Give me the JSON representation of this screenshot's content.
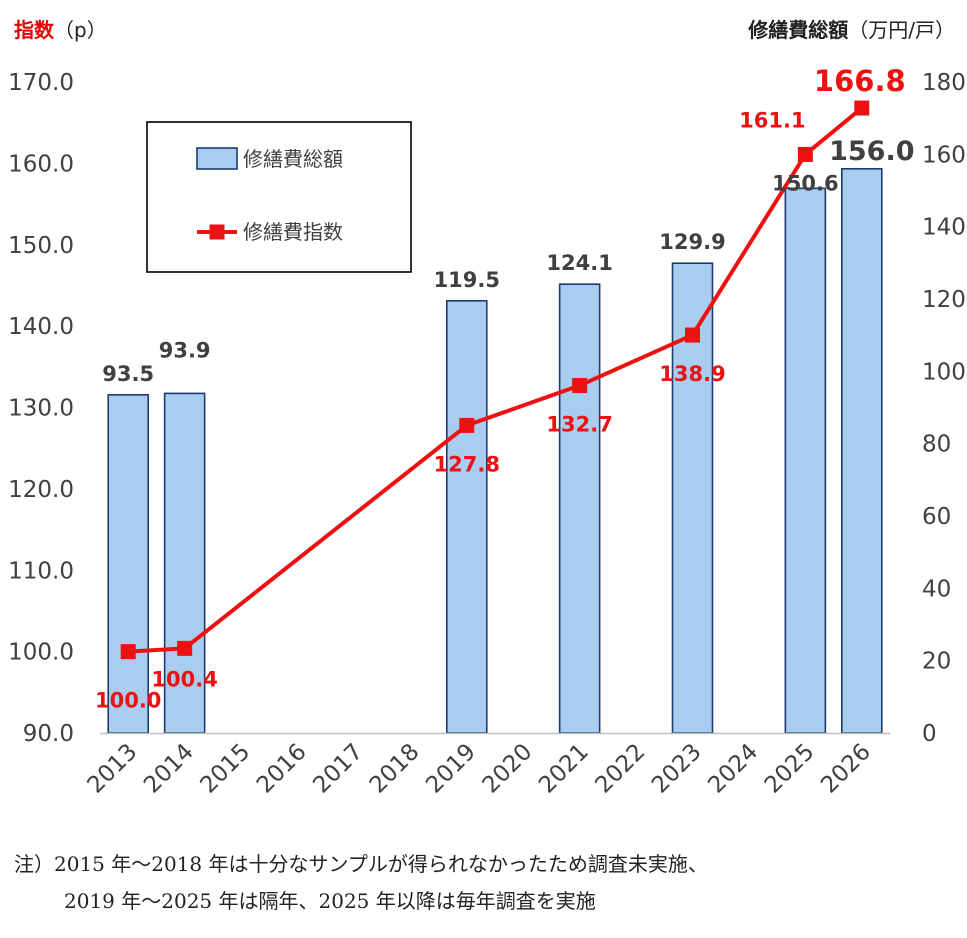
{
  "chart_data": {
    "type": "bar+line",
    "categories": [
      "2013",
      "2014",
      "2015",
      "2016",
      "2017",
      "2018",
      "2019",
      "2020",
      "2021",
      "2022",
      "2023",
      "2024",
      "2025",
      "2026"
    ],
    "series": [
      {
        "name": "修繕費総額",
        "type": "bar",
        "axis": "right",
        "color": "#a9cdee",
        "edge_color": "#1f3a6e",
        "values": [
          93.5,
          93.9,
          null,
          null,
          null,
          null,
          119.5,
          null,
          124.1,
          null,
          129.9,
          null,
          150.6,
          156.0
        ],
        "labels": [
          "93.5",
          "93.9",
          "",
          "",
          "",
          "",
          "119.5",
          "",
          "124.1",
          "",
          "129.9",
          "",
          "150.6",
          "156.0"
        ]
      },
      {
        "name": "修繕費指数",
        "type": "line",
        "axis": "left",
        "color": "#ee1111",
        "values": [
          100.0,
          100.4,
          null,
          null,
          null,
          null,
          127.8,
          null,
          132.7,
          null,
          138.9,
          null,
          161.1,
          166.8
        ],
        "labels": [
          "100.0",
          "100.4",
          "",
          "",
          "",
          "",
          "127.8",
          "",
          "132.7",
          "",
          "138.9",
          "",
          "161.1",
          "166.8"
        ]
      }
    ],
    "y_left": {
      "title_highlight": "指数",
      "title_unit": "（p）",
      "min": 90,
      "max": 170,
      "step": 10,
      "ticks": [
        "90.0",
        "100.0",
        "110.0",
        "120.0",
        "130.0",
        "140.0",
        "150.0",
        "160.0",
        "170.0"
      ]
    },
    "y_right": {
      "title": "修繕費総額",
      "title_unit": "（万円/戸）",
      "min": 0,
      "max": 180,
      "step": 20,
      "ticks": [
        "0",
        "20",
        "40",
        "60",
        "80",
        "100",
        "120",
        "140",
        "160",
        "180"
      ]
    },
    "grid": false,
    "legend_position": "top-left"
  },
  "note": {
    "line1": "注）2015 年〜2018 年は十分なサンプルが得られなかったため調査未実施、",
    "line2": "2019 年〜2025 年は隔年、2025 年以降は毎年調査を実施"
  }
}
